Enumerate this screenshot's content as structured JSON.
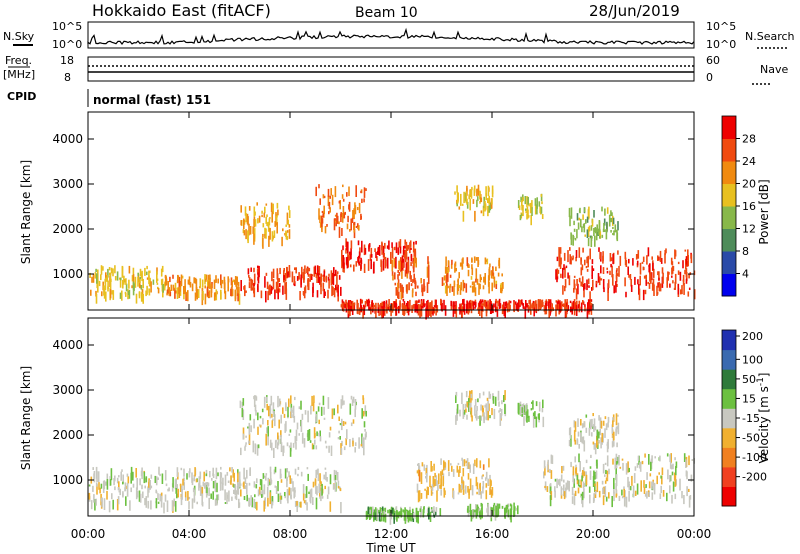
{
  "header": {
    "site": "Hokkaido East (fitACF)",
    "beam": "Beam 10",
    "date": "28/Jun/2019"
  },
  "top_strips": {
    "nsky_label": "N.Sky",
    "nsky_ticks": [
      "10^5",
      "10^0"
    ],
    "nsearch_label": "N.Search",
    "freq_label_1": "Freq.",
    "freq_label_2": "[MHz]",
    "freq_ticks": [
      "18",
      "8"
    ],
    "nave_label": "Nave",
    "nave_ticks": [
      "60",
      "0"
    ],
    "cpid_label": "CPID",
    "cpid_text": "normal (fast) 151"
  },
  "x_axis": {
    "label": "Time UT",
    "ticks": [
      "00:00",
      "04:00",
      "08:00",
      "12:00",
      "16:00",
      "20:00",
      "00:00"
    ]
  },
  "colors": {
    "power_scale": [
      "#0000ee",
      "#2a4aa8",
      "#4e8c5a",
      "#88b84a",
      "#e8c020",
      "#f08a10",
      "#f04a10",
      "#ee0000"
    ],
    "velocity_scale": [
      "#2030b0",
      "#3a6ab0",
      "#2e7a3a",
      "#6cc040",
      "#c8c8c0",
      "#f0b030",
      "#f08020",
      "#f04020",
      "#ee0000"
    ]
  },
  "chart_data": [
    {
      "type": "heatmap",
      "title": "",
      "xlabel": "",
      "ylabel": "Slant Range [km]",
      "xlim": [
        0,
        24
      ],
      "ylim": [
        200,
        4600
      ],
      "yticks": [
        1000,
        2000,
        3000,
        4000
      ],
      "colorbar_label": "Power [dB]",
      "colorbar_ticks": [
        "4",
        "8",
        "12",
        "16",
        "20",
        "24",
        "28"
      ],
      "colorbar_range": [
        0,
        32
      ],
      "regions": [
        {
          "t": [
            0.0,
            3.0
          ],
          "r": [
            550,
            1200
          ],
          "value": 18
        },
        {
          "t": [
            3.0,
            6.0
          ],
          "r": [
            550,
            1000
          ],
          "value": 22
        },
        {
          "t": [
            6.0,
            10.0
          ],
          "r": [
            600,
            1200
          ],
          "value": 27
        },
        {
          "t": [
            6.0,
            8.0
          ],
          "r": [
            1800,
            2600
          ],
          "value": 20
        },
        {
          "t": [
            9.0,
            11.0
          ],
          "r": [
            2000,
            3000
          ],
          "value": 24
        },
        {
          "t": [
            10.0,
            13.0
          ],
          "r": [
            1200,
            1800
          ],
          "value": 28
        },
        {
          "t": [
            12.0,
            13.5
          ],
          "r": [
            600,
            1400
          ],
          "value": 25
        },
        {
          "t": [
            14.0,
            16.5
          ],
          "r": [
            700,
            1400
          ],
          "value": 22
        },
        {
          "t": [
            14.5,
            16.0
          ],
          "r": [
            2400,
            3000
          ],
          "value": 18
        },
        {
          "t": [
            17.0,
            18.0
          ],
          "r": [
            2300,
            2800
          ],
          "value": 16
        },
        {
          "t": [
            18.5,
            24.0
          ],
          "r": [
            600,
            1600
          ],
          "value": 27
        },
        {
          "t": [
            19.0,
            21.0
          ],
          "r": [
            1800,
            2500
          ],
          "value": 14
        },
        {
          "t": [
            10.0,
            20.0
          ],
          "r": [
            250,
            450
          ],
          "value": 28
        }
      ]
    },
    {
      "type": "heatmap",
      "title": "",
      "xlabel": "Time UT",
      "ylabel": "Slant Range [km]",
      "xlim": [
        0,
        24
      ],
      "ylim": [
        200,
        4600
      ],
      "yticks": [
        1000,
        2000,
        3000,
        4000
      ],
      "colorbar_label": "Velocity [m s^-1]",
      "colorbar_ticks": [
        "200",
        "100",
        "50",
        "15",
        "-15",
        "-50",
        "-100",
        "-200"
      ],
      "colorbar_range": [
        -250,
        250
      ],
      "regions": [
        {
          "t": [
            0.0,
            10.0
          ],
          "r": [
            500,
            1300
          ],
          "value": 0
        },
        {
          "t": [
            6.0,
            11.0
          ],
          "r": [
            1700,
            2900
          ],
          "value": 0
        },
        {
          "t": [
            13.0,
            16.0
          ],
          "r": [
            700,
            1500
          ],
          "value": -40
        },
        {
          "t": [
            15.0,
            17.0
          ],
          "r": [
            300,
            500
          ],
          "value": 40
        },
        {
          "t": [
            11.0,
            14.0
          ],
          "r": [
            250,
            420
          ],
          "value": 50
        },
        {
          "t": [
            14.5,
            16.5
          ],
          "r": [
            2400,
            3000
          ],
          "value": 0
        },
        {
          "t": [
            17.0,
            18.0
          ],
          "r": [
            2400,
            2800
          ],
          "value": 40
        },
        {
          "t": [
            18.0,
            24.0
          ],
          "r": [
            600,
            1600
          ],
          "value": 0
        },
        {
          "t": [
            19.0,
            21.0
          ],
          "r": [
            1800,
            2500
          ],
          "value": 0
        }
      ]
    }
  ]
}
